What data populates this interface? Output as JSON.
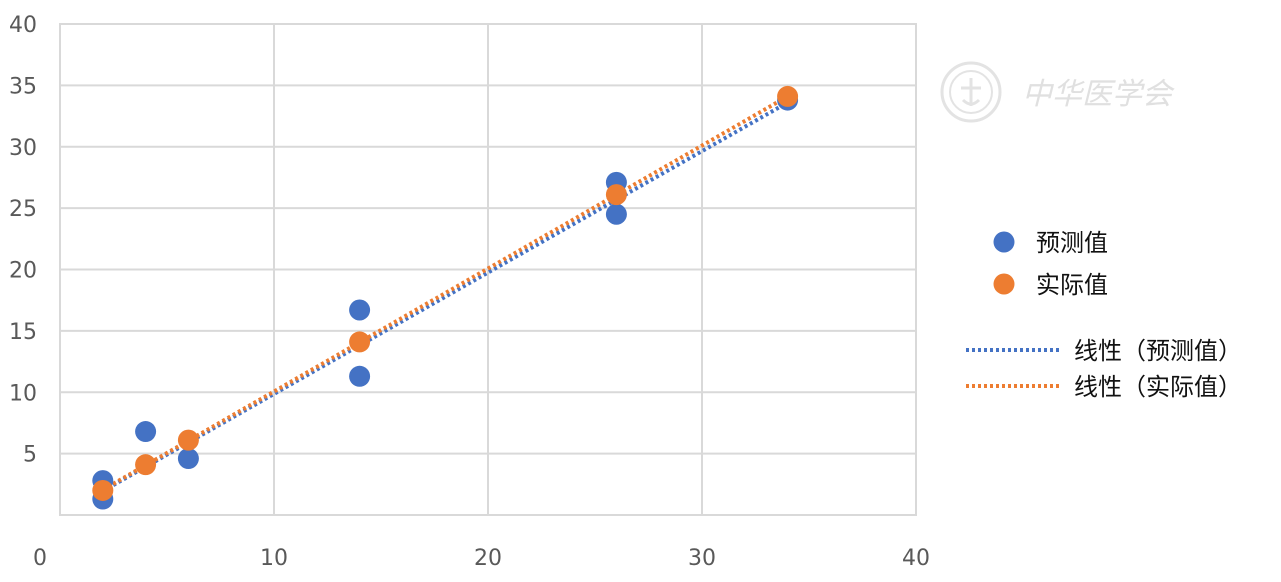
{
  "chart_data": {
    "type": "scatter",
    "title": "",
    "xlabel": "",
    "ylabel": "",
    "xlim": [
      0,
      40
    ],
    "ylim": [
      0,
      40
    ],
    "x_ticks": [
      0,
      10,
      20,
      30,
      40
    ],
    "y_ticks": [
      5,
      10,
      15,
      20,
      25,
      30,
      35,
      40
    ],
    "grid": true,
    "legend_position": "right",
    "series": [
      {
        "name": "预测值",
        "color": "#4472C4",
        "points": [
          {
            "x": 2,
            "y": 2.8
          },
          {
            "x": 2,
            "y": 1.3
          },
          {
            "x": 4,
            "y": 6.8
          },
          {
            "x": 6,
            "y": 4.6
          },
          {
            "x": 14,
            "y": 16.7
          },
          {
            "x": 14,
            "y": 11.3
          },
          {
            "x": 26,
            "y": 27.1
          },
          {
            "x": 26,
            "y": 24.5
          },
          {
            "x": 34,
            "y": 33.8
          }
        ]
      },
      {
        "name": "实际值",
        "color": "#ED7D31",
        "points": [
          {
            "x": 2,
            "y": 2.0
          },
          {
            "x": 4,
            "y": 4.1
          },
          {
            "x": 6,
            "y": 6.1
          },
          {
            "x": 14,
            "y": 14.1
          },
          {
            "x": 26,
            "y": 26.1
          },
          {
            "x": 34,
            "y": 34.1
          }
        ]
      }
    ],
    "trendlines": [
      {
        "name": "线性（预测值）",
        "color": "#4472C4",
        "from": [
          2,
          1.95
        ],
        "to": [
          34,
          33.6
        ]
      },
      {
        "name": "线性（实际值）",
        "color": "#ED7D31",
        "from": [
          2,
          2.05
        ],
        "to": [
          34,
          34.1
        ]
      }
    ]
  },
  "watermark": {
    "text": "中华医学会",
    "seal_icon": "society-seal-icon"
  }
}
